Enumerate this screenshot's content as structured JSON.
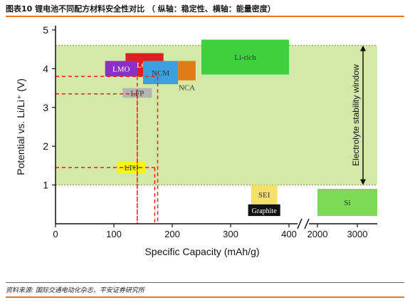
{
  "header": {
    "title": "图表10   锂电池不同配方材料安全性对比 （ 纵轴：稳定性、横轴：能量密度）",
    "accent_color": "#e87722"
  },
  "footer": {
    "source": "资料来源: 国际交通电动化杂志、平安证券研究所"
  },
  "chart_data": {
    "type": "scatter",
    "title": "",
    "xlabel": "Specific Capacity (mAh/g)",
    "ylabel": "Potential vs. Li/Li⁺ (V)",
    "xlim": [
      0,
      3500
    ],
    "x_break": [
      400,
      2000
    ],
    "ylim": [
      0,
      5
    ],
    "xticks": [
      0,
      100,
      200,
      300,
      400,
      2000,
      3000
    ],
    "yticks": [
      1,
      2,
      3,
      4,
      5
    ],
    "electrolyte_window": {
      "label": "Electrolyte stability window",
      "y_range": [
        1.0,
        4.6
      ],
      "color": "#d4e8a8"
    },
    "materials": [
      {
        "name": "LCO",
        "x_range": [
          120,
          185
        ],
        "y_range": [
          3.8,
          4.4
        ],
        "color": "#e02020",
        "text_color": "#ffffff"
      },
      {
        "name": "LMO",
        "x_range": [
          85,
          140
        ],
        "y_range": [
          3.8,
          4.2
        ],
        "color": "#8b2fc9",
        "text_color": "#ffffff"
      },
      {
        "name": "NCM",
        "x_range": [
          150,
          210
        ],
        "y_range": [
          3.6,
          4.2
        ],
        "color": "#3aa0e0",
        "text_color": "#333333"
      },
      {
        "name": "NCA",
        "x_range": [
          210,
          240
        ],
        "y_range": [
          3.7,
          4.2
        ],
        "color": "#e07b1a",
        "text_color": "#333333"
      },
      {
        "name": "LFP",
        "x_range": [
          115,
          165
        ],
        "y_range": [
          3.25,
          3.5
        ],
        "color": "#b4b4b4",
        "text_color": "#333333"
      },
      {
        "name": "Li-rich",
        "x_range": [
          250,
          400
        ],
        "y_range": [
          3.85,
          4.75
        ],
        "color": "#3fcf3f",
        "text_color": "#333333"
      },
      {
        "name": "LTO",
        "x_range": [
          105,
          155
        ],
        "y_range": [
          1.3,
          1.6
        ],
        "color": "#f5f516",
        "text_color": "#333333"
      },
      {
        "name": "SEI",
        "x_range": [
          335,
          380
        ],
        "y_range": [
          0.5,
          1.0
        ],
        "color": "#f5e06e",
        "text_color": "#333333"
      },
      {
        "name": "Graphite",
        "x_range": [
          330,
          385
        ],
        "y_range": [
          0.2,
          0.5
        ],
        "color": "#111111",
        "text_color": "#ffffff"
      },
      {
        "name": "Si",
        "x_range": [
          2000,
          3500
        ],
        "y_range": [
          0.2,
          0.9
        ],
        "color": "#7ed957",
        "text_color": "#333333"
      }
    ],
    "dashed_guides": [
      {
        "x": 140,
        "y": 3.8
      },
      {
        "x": 175,
        "y": 3.8
      },
      {
        "x": 140,
        "y": 3.35
      },
      {
        "x": 170,
        "y": 1.45
      }
    ],
    "guide_color": "#ff1a1a",
    "grid": false
  }
}
